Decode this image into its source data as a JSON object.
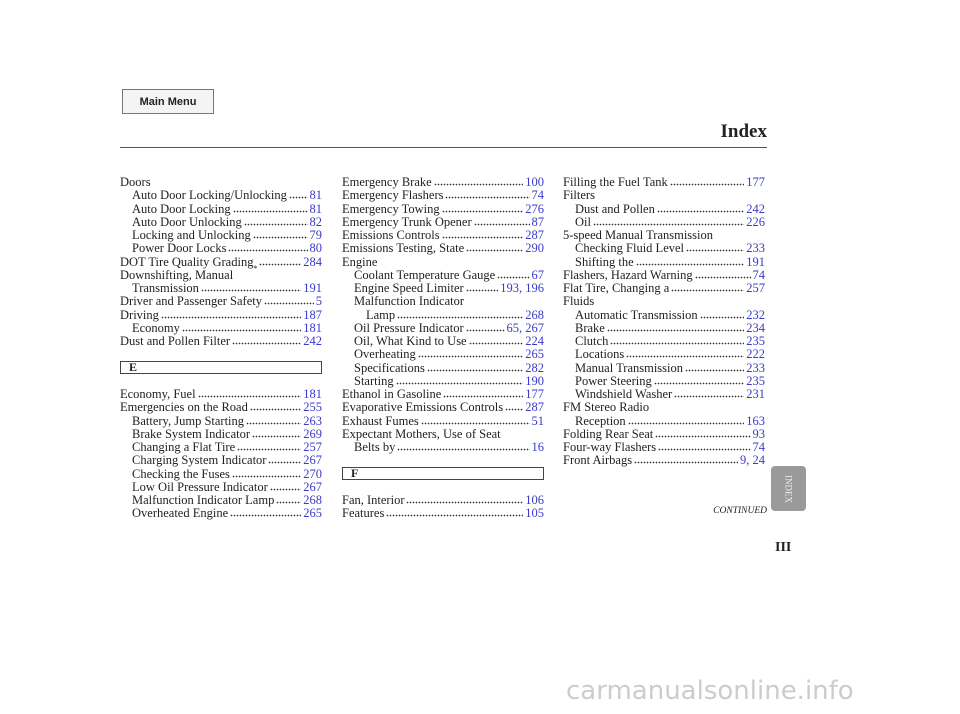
{
  "main_menu": "Main Menu",
  "title": "Index",
  "continued": "CONTINUED",
  "side_tab": "INDEX",
  "page_number": "III",
  "watermark": "carmanualsonline.info",
  "columns": [
    {
      "entries": [
        {
          "text": "Doors",
          "children": [
            {
              "text": "Auto Door Locking/Unlocking",
              "pages": 81
            },
            {
              "text": "Auto Door Locking",
              "pages": 81
            },
            {
              "text": "Auto Door Unlocking",
              "pages": 82
            },
            {
              "text": "Locking and Unlocking",
              "pages": 79
            },
            {
              "text": "Power Door Locks",
              "pages": 80
            }
          ]
        },
        {
          "text": "DOT Tire Quality Grading",
          "note": "*",
          "pages": 284
        },
        {
          "text": "Downshifting, Manual",
          "children": [
            {
              "text": "Transmission",
              "pages": 191
            }
          ]
        },
        {
          "text": "Driver and Passenger Safety",
          "pages": 5
        },
        {
          "text": "Driving",
          "pages": 187,
          "children": [
            {
              "text": "Economy",
              "pages": 181
            }
          ]
        },
        {
          "text": "Dust and Pollen Filter",
          "pages": 242
        },
        {
          "section": "E"
        },
        {
          "text": "Economy, Fuel",
          "pages": 181
        },
        {
          "text": "Emergencies on the Road",
          "pages": 255,
          "children": [
            {
              "text": "Battery, Jump Starting",
              "pages": 263
            },
            {
              "text": "Brake System Indicator",
              "pages": 269
            },
            {
              "text": "Changing a Flat Tire",
              "pages": 257
            },
            {
              "text": "Charging System Indicator",
              "pages": 267
            },
            {
              "text": "Checking the Fuses",
              "pages": 270
            },
            {
              "text": "Low Oil Pressure Indicator",
              "pages": 267
            },
            {
              "text": "Malfunction Indicator Lamp",
              "pages": 268
            },
            {
              "text": "Overheated Engine",
              "pages": 265
            }
          ]
        }
      ]
    },
    {
      "entries": [
        {
          "text": "Emergency Brake",
          "pages": 100
        },
        {
          "text": "Emergency Flashers",
          "pages": 74
        },
        {
          "text": "Emergency Towing",
          "pages": 276
        },
        {
          "text": "Emergency Trunk Opener",
          "pages": 87
        },
        {
          "text": "Emissions Controls",
          "pages": 287
        },
        {
          "text": "Emissions Testing, State",
          "pages": 290
        },
        {
          "text": "Engine",
          "children": [
            {
              "text": "Coolant Temperature Gauge",
              "pages": 67
            },
            {
              "text": "Engine Speed Limiter",
              "pages": "193, 196"
            },
            {
              "text": "Malfunction Indicator",
              "children": [
                {
                  "text": "Lamp",
                  "pages": 268
                }
              ]
            },
            {
              "text": "Oil Pressure Indicator",
              "pages": "65, 267"
            },
            {
              "text": "Oil, What Kind to Use",
              "pages": 224
            },
            {
              "text": "Overheating",
              "pages": 265
            },
            {
              "text": "Specifications",
              "pages": 282
            },
            {
              "text": "Starting",
              "pages": 190
            }
          ]
        },
        {
          "text": "Ethanol in Gasoline",
          "pages": 177
        },
        {
          "text": "Evaporative Emissions Controls",
          "pages": 287
        },
        {
          "text": "Exhaust Fumes",
          "pages": 51
        },
        {
          "text": "Expectant Mothers, Use of Seat",
          "children": [
            {
              "text": "Belts by",
              "pages": 16
            }
          ]
        },
        {
          "section": "F"
        },
        {
          "text": "Fan, Interior",
          "pages": 106
        },
        {
          "text": "Features",
          "pages": 105
        }
      ]
    },
    {
      "entries": [
        {
          "text": "Filling the Fuel Tank",
          "pages": 177
        },
        {
          "text": "Filters",
          "children": [
            {
              "text": "Dust and Pollen",
              "pages": 242
            },
            {
              "text": "Oil",
              "pages": 226
            }
          ]
        },
        {
          "text": "5-speed Manual Transmission",
          "children": [
            {
              "text": "Checking Fluid Level",
              "pages": 233
            },
            {
              "text": "Shifting the",
              "pages": 191
            }
          ]
        },
        {
          "text": "Flashers, Hazard Warning",
          "pages": 74
        },
        {
          "text": "Flat Tire, Changing a",
          "pages": 257
        },
        {
          "text": "Fluids",
          "children": [
            {
              "text": "Automatic Transmission",
              "pages": 232
            },
            {
              "text": "Brake",
              "pages": 234
            },
            {
              "text": "Clutch",
              "pages": 235
            },
            {
              "text": "Locations",
              "pages": 222
            },
            {
              "text": "Manual Transmission",
              "pages": 233
            },
            {
              "text": "Power Steering",
              "pages": 235
            },
            {
              "text": "Windshield Washer",
              "pages": 231
            }
          ]
        },
        {
          "text": "FM Stereo Radio",
          "children": [
            {
              "text": "Reception",
              "pages": 163
            }
          ]
        },
        {
          "text": "Folding Rear Seat",
          "pages": 93
        },
        {
          "text": "Four-way Flashers",
          "pages": 74
        },
        {
          "text": "Front Airbags",
          "pages": "9, 24"
        }
      ]
    }
  ]
}
